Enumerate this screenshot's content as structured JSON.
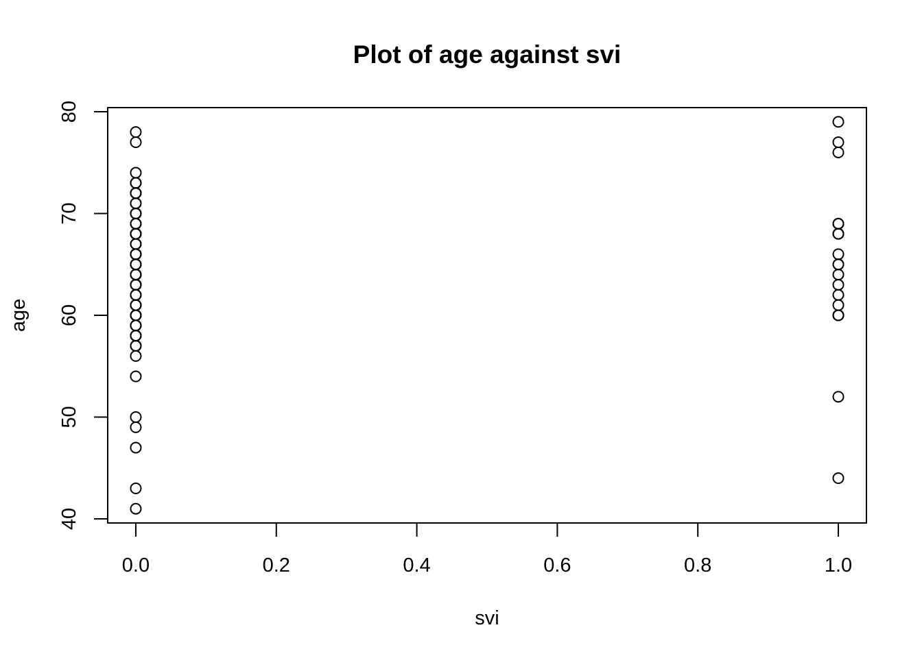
{
  "chart_data": {
    "type": "scatter",
    "title": "Plot of  age  against svi",
    "xlabel": "svi",
    "ylabel": "age",
    "xlim": [
      -0.04,
      1.04
    ],
    "ylim": [
      39.6,
      80.4
    ],
    "xticks": [
      0,
      0.2,
      0.4,
      0.6,
      0.8,
      1
    ],
    "xtick_labels": [
      "0.0",
      "0.2",
      "0.4",
      "0.6",
      "0.8",
      "1.0"
    ],
    "yticks": [
      40,
      50,
      60,
      70,
      80
    ],
    "ytick_labels": [
      "40",
      "50",
      "60",
      "70",
      "80"
    ],
    "grid": false,
    "legend": "none",
    "marker": "open-circle",
    "series": [
      {
        "x": [
          0,
          0,
          0,
          0,
          0,
          0,
          0,
          0,
          0,
          0,
          0,
          0,
          0,
          0,
          0,
          0,
          0,
          0,
          0,
          0,
          0,
          0,
          0,
          0,
          0,
          0,
          0,
          0,
          0,
          0,
          0,
          0,
          0,
          0,
          0,
          0,
          0,
          0,
          0,
          0,
          0,
          0,
          0,
          0,
          0,
          0,
          0,
          0,
          0,
          0,
          0,
          0,
          0,
          0,
          0,
          0,
          0,
          0,
          0,
          0,
          0,
          0,
          0,
          0,
          0,
          0,
          0,
          0,
          0,
          0,
          0,
          0,
          0,
          0,
          0,
          0
        ],
        "y": [
          78,
          77,
          74,
          73,
          73,
          72,
          72,
          72,
          71,
          70,
          70,
          70,
          69,
          69,
          68,
          68,
          68,
          67,
          67,
          66,
          66,
          66,
          65,
          65,
          65,
          64,
          64,
          64,
          63,
          63,
          63,
          62,
          62,
          61,
          61,
          61,
          60,
          60,
          60,
          59,
          59,
          58,
          58,
          58,
          57,
          57,
          56,
          54,
          50,
          49,
          47,
          43,
          41,
          72,
          70,
          68,
          66,
          64,
          63,
          61,
          60,
          58,
          69,
          67,
          65,
          62,
          59,
          57,
          71,
          64,
          60,
          66,
          68,
          70,
          65,
          63
        ]
      },
      {
        "x": [
          1,
          1,
          1,
          1,
          1,
          1,
          1,
          1,
          1,
          1,
          1,
          1,
          1,
          1,
          1,
          1,
          1,
          1,
          1,
          1,
          1
        ],
        "y": [
          79,
          77,
          76,
          69,
          69,
          68,
          68,
          66,
          65,
          64,
          63,
          62,
          61,
          60,
          60,
          52,
          44,
          69,
          68,
          65,
          60
        ]
      }
    ]
  }
}
